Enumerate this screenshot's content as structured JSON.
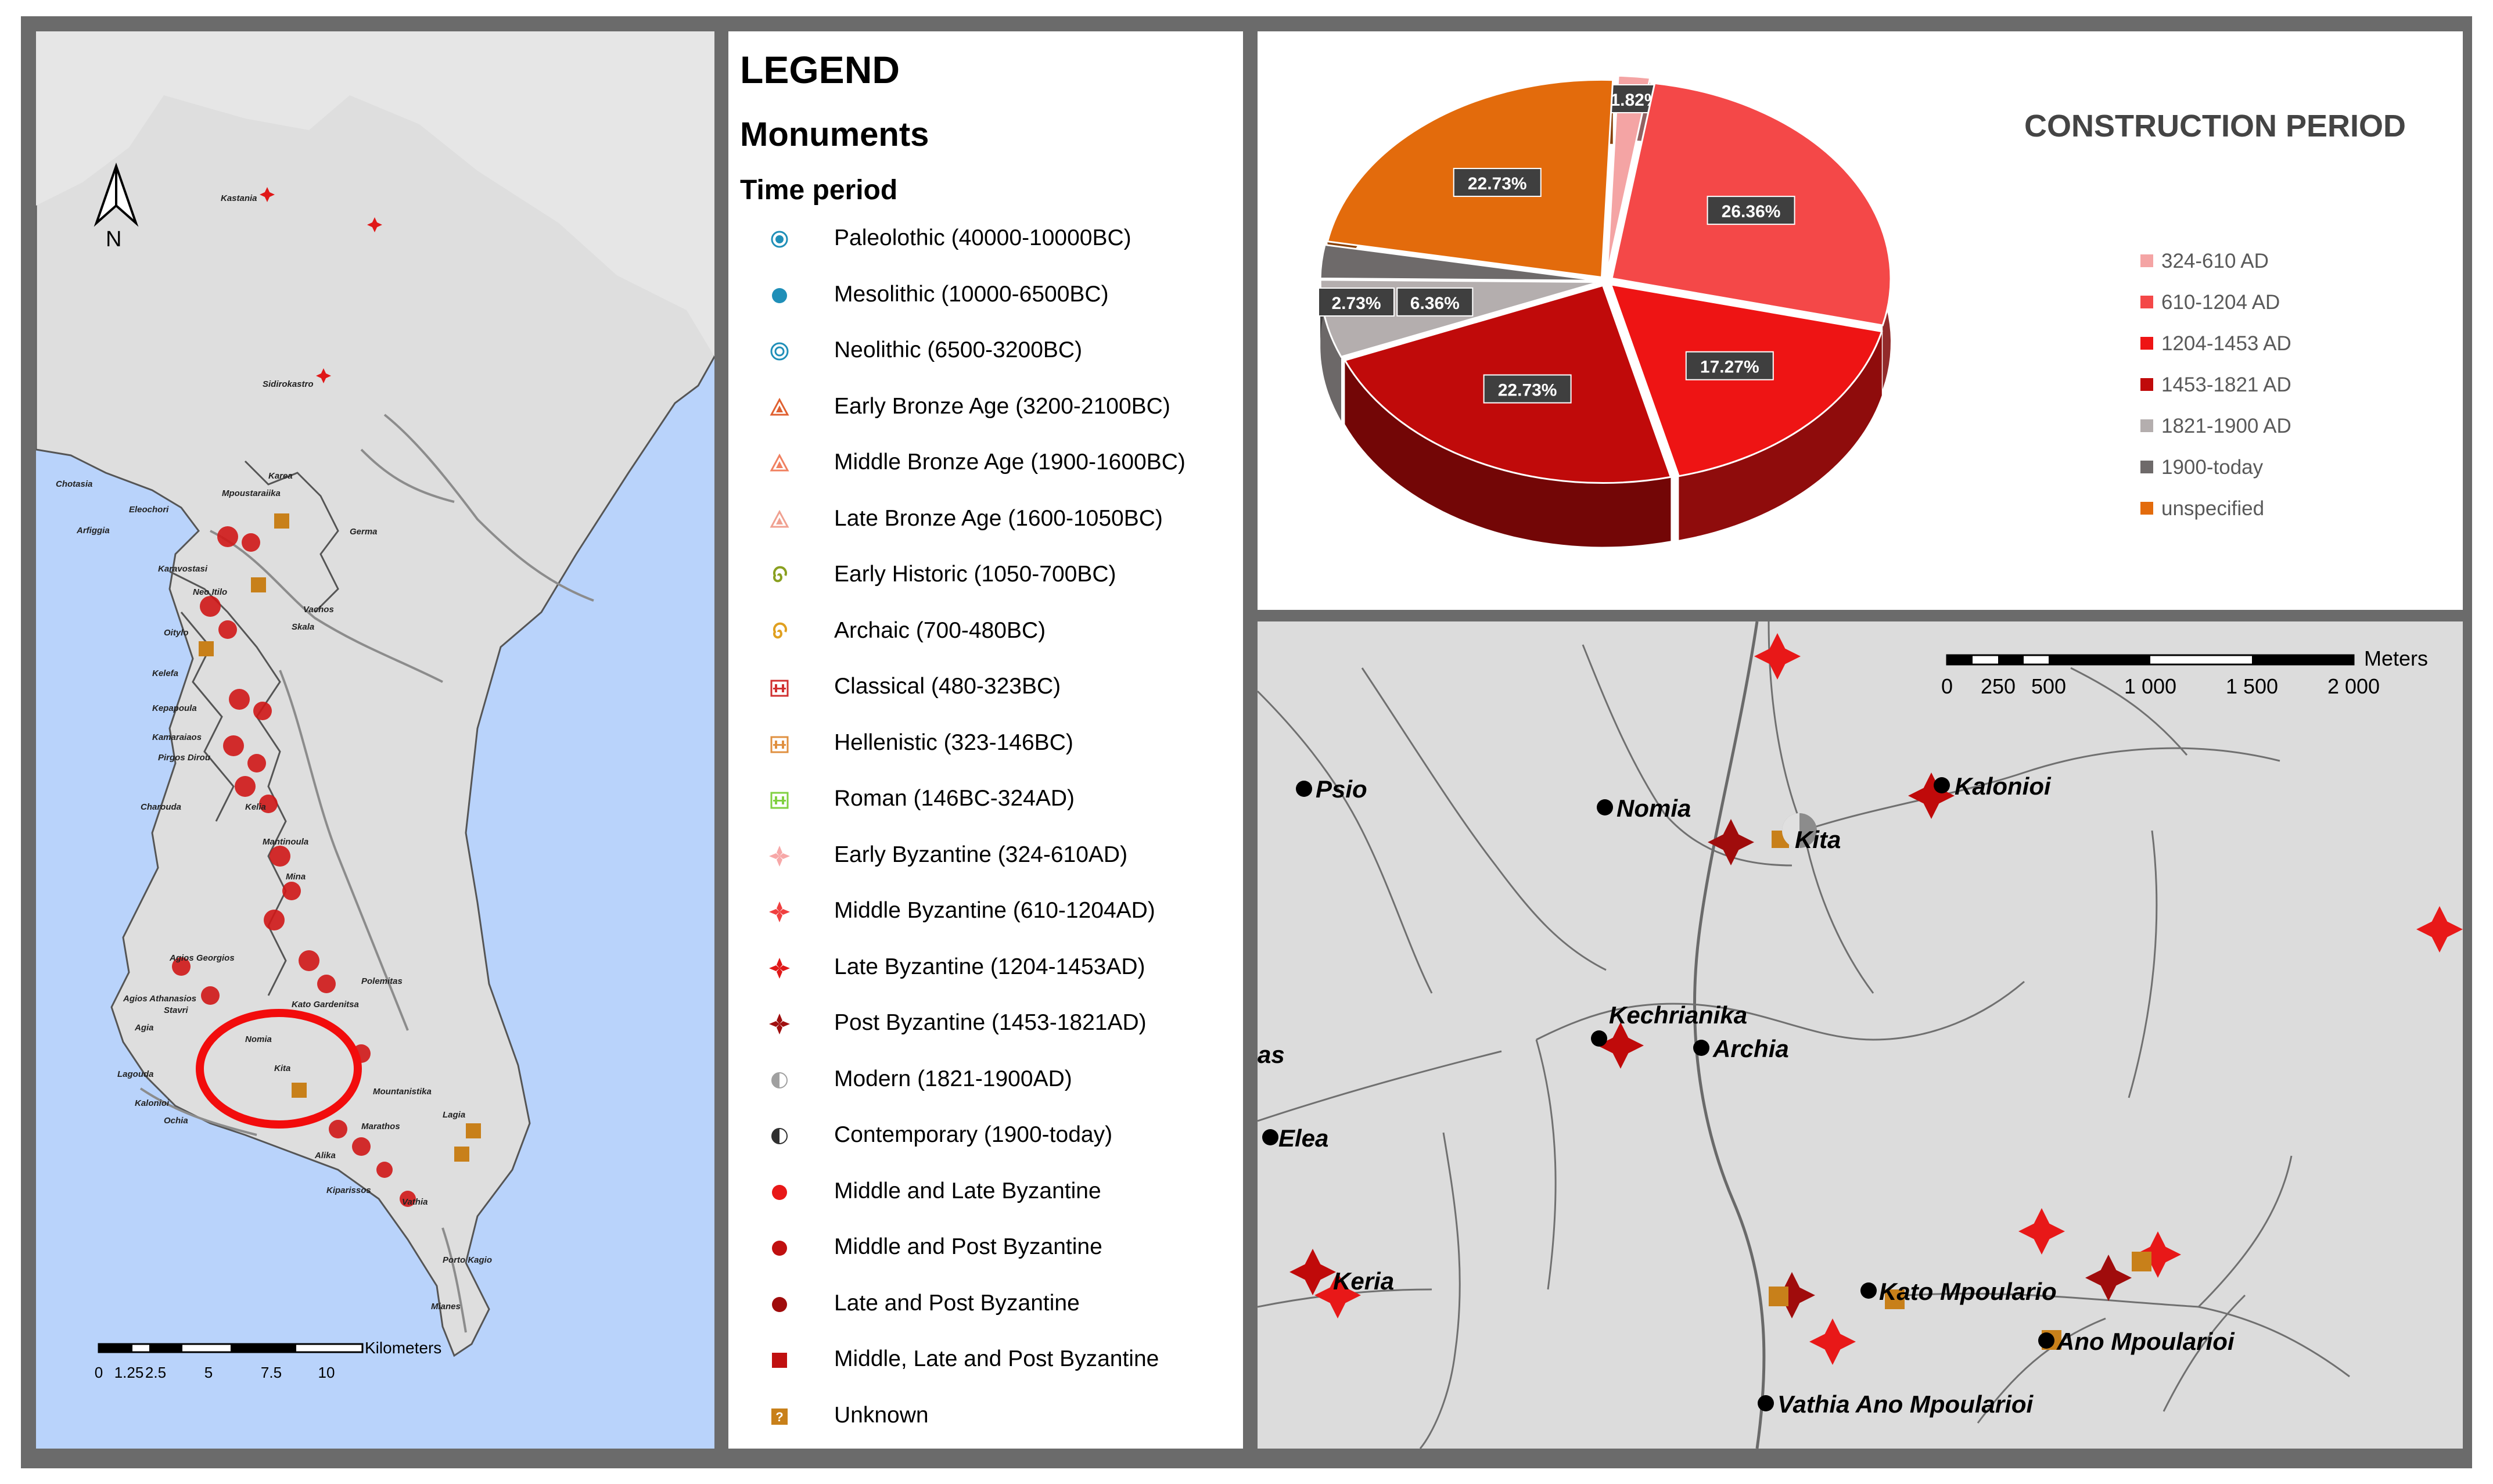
{
  "left_map": {
    "north_label": "N",
    "scale_unit": "Kilometers",
    "scale_ticks": [
      "0",
      "1.25",
      "2.5",
      "5",
      "7.5",
      "10"
    ],
    "place_labels": [
      "Kastania",
      "Sidirokastro",
      "Chotasia",
      "Arfiggia",
      "Eleochori",
      "Mpoustaraiika",
      "Karea",
      "Germa",
      "Neo Itilo",
      "Vachos",
      "Skala",
      "Karavostasi",
      "Oitylo",
      "Kelefa",
      "Kepapoula",
      "Kamaraiaos",
      "Pirgos Dirou",
      "Charouda",
      "Mina",
      "Kelia",
      "Mantinoula",
      "Agios Athanasios",
      "Agia",
      "Agios Georgios",
      "Stavri",
      "Polemitas",
      "Kato Gardenitsa",
      "Nomia",
      "Kita",
      "Lagouda",
      "Kalonioi",
      "Ochia",
      "Mountanistika",
      "Marathos",
      "Alika",
      "Kiparissos",
      "Vathia",
      "Lagia",
      "Porto Kagio",
      "Mianes"
    ]
  },
  "legend": {
    "title": "LEGEND",
    "subtitle": "Monuments",
    "section": "Time period",
    "items": [
      {
        "label": "Paleolothic (40000-10000BC)",
        "symbol": "dot-ring",
        "color": "#1f8fb8"
      },
      {
        "label": "Mesolithic (10000-6500BC)",
        "symbol": "dot",
        "color": "#1f8fb8"
      },
      {
        "label": "Neolithic (6500-3200BC)",
        "symbol": "double-ring",
        "color": "#1f8fb8"
      },
      {
        "label": "Early Bronze Age (3200-2100BC)",
        "symbol": "triangle",
        "color": "#e06030"
      },
      {
        "label": "Middle Bronze Age (1900-1600BC)",
        "symbol": "triangle",
        "color": "#f08060"
      },
      {
        "label": "Late Bronze Age (1600-1050BC)",
        "symbol": "triangle",
        "color": "#f0a090"
      },
      {
        "label": "Early Historic (1050-700BC)",
        "symbol": "spiral",
        "color": "#8aa020"
      },
      {
        "label": "Archaic (700-480BC)",
        "symbol": "spiral",
        "color": "#e0a020"
      },
      {
        "label": "Classical (480-323BC)",
        "symbol": "temple",
        "color": "#d03030"
      },
      {
        "label": "Hellenistic (323-146BC)",
        "symbol": "temple",
        "color": "#e09040"
      },
      {
        "label": "Roman (146BC-324AD)",
        "symbol": "temple",
        "color": "#80d040"
      },
      {
        "label": "Early Byzantine (324-610AD)",
        "symbol": "cross",
        "color": "#f7a8a8"
      },
      {
        "label": "Middle Byzantine (610-1204AD)",
        "symbol": "cross",
        "color": "#f04040"
      },
      {
        "label": "Late Byzantine (1204-1453AD)",
        "symbol": "cross",
        "color": "#e01818"
      },
      {
        "label": "Post Byzantine (1453-1821AD)",
        "symbol": "cross",
        "color": "#a01010"
      },
      {
        "label": "Modern (1821-1900AD)",
        "symbol": "half-circle",
        "color": "#a0a0a0"
      },
      {
        "label": "Contemporary (1900-today)",
        "symbol": "half-circle",
        "color": "#303030"
      },
      {
        "label": "Middle and Late Byzantine",
        "symbol": "dot",
        "color": "#e81818"
      },
      {
        "label": "Middle and Post Byzantine",
        "symbol": "dot",
        "color": "#c01010"
      },
      {
        "label": "Late and Post Byzantine",
        "symbol": "dot",
        "color": "#a00c0c"
      },
      {
        "label": "Middle, Late and Post Byzantine",
        "symbol": "square",
        "color": "#c01010"
      },
      {
        "label": "Unknown",
        "symbol": "question",
        "color": "#c8801a"
      }
    ]
  },
  "chart_data": {
    "type": "pie",
    "title": "CONSTRUCTION PERIOD",
    "legend_position": "right",
    "slices": [
      {
        "name": "324-610 AD",
        "value": 1.82,
        "label": "1.82%",
        "color": "#f4a4a4"
      },
      {
        "name": "610-1204 AD",
        "value": 26.36,
        "label": "26.36%",
        "color": "#f44848"
      },
      {
        "name": "1204-1453 AD",
        "value": 17.27,
        "label": "17.27%",
        "color": "#ee1414"
      },
      {
        "name": "1453-1821 AD",
        "value": 22.73,
        "label": "22.73%",
        "color": "#c00a0a"
      },
      {
        "name": "1821-1900 AD",
        "value": 6.36,
        "label": "6.36%",
        "color": "#b4aeae"
      },
      {
        "name": "1900-today",
        "value": 2.73,
        "label": "2.73%",
        "color": "#6e6a6a"
      },
      {
        "name": "unspecified",
        "value": 22.73,
        "label": "22.73%",
        "color": "#e36b0c"
      }
    ]
  },
  "right_map": {
    "scale_unit": "Meters",
    "scale_ticks": [
      "0",
      "250",
      "500",
      "1 000",
      "1 500",
      "2 000"
    ],
    "places": [
      "Psio",
      "Nomia",
      "Kita",
      "Kalonioi",
      "Kechrianika",
      "Archia",
      "as",
      "Elea",
      "Keria",
      "Kato Mpoulario",
      "Ano Mpoularioi",
      "Vathia Ano Mpoularioi"
    ]
  }
}
